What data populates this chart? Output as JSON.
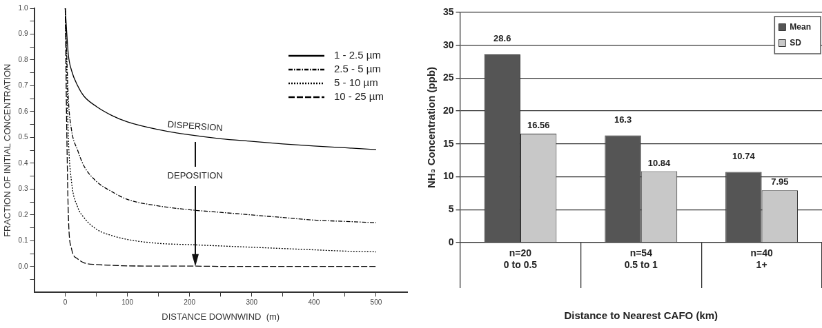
{
  "chart_data": [
    {
      "type": "line",
      "xlabel": "DISTANCE DOWNWIND  (m)",
      "ylabel": "FRACTION OF INITIAL CONCENTRATION",
      "x": [
        0,
        2,
        5,
        10,
        20,
        30,
        50,
        75,
        100,
        150,
        200,
        250,
        300,
        350,
        400,
        450,
        500
      ],
      "series": [
        {
          "name": "1 - 2.5 µm",
          "color": "#000000",
          "line_style": "solid",
          "values": [
            1.0,
            0.92,
            0.82,
            0.76,
            0.7,
            0.66,
            0.62,
            0.585,
            0.56,
            0.53,
            0.51,
            0.495,
            0.485,
            0.475,
            0.467,
            0.46,
            0.453
          ]
        },
        {
          "name": "2.5 - 5 µm",
          "color": "#000000",
          "line_style": "dashdot",
          "values": [
            1.0,
            0.85,
            0.65,
            0.53,
            0.45,
            0.39,
            0.33,
            0.29,
            0.26,
            0.235,
            0.22,
            0.21,
            0.2,
            0.19,
            0.18,
            0.175,
            0.17
          ]
        },
        {
          "name": "5 - 10 µm",
          "color": "#000000",
          "line_style": "dotted",
          "values": [
            1.0,
            0.8,
            0.5,
            0.33,
            0.23,
            0.19,
            0.145,
            0.12,
            0.105,
            0.09,
            0.085,
            0.08,
            0.075,
            0.07,
            0.065,
            0.06,
            0.057
          ]
        },
        {
          "name": "10 - 25 µm",
          "color": "#000000",
          "line_style": "dashed",
          "values": [
            1.0,
            0.6,
            0.2,
            0.07,
            0.03,
            0.015,
            0.008,
            0.005,
            0.003,
            0.002,
            0.002,
            0.001,
            0.001,
            0.001,
            0.001,
            0.001,
            0.001
          ]
        }
      ],
      "xlim": [
        -50,
        550
      ],
      "xticks": [
        0,
        {
          "value": 50,
          "label": null
        },
        100,
        {
          "value": 150,
          "label": null
        },
        200,
        {
          "value": 250,
          "label": null
        },
        300,
        {
          "value": 350,
          "label": null
        },
        400,
        {
          "value": 450,
          "label": null
        },
        500
      ],
      "ylim": [
        -0.1,
        1.0
      ],
      "yticks": [
        {
          "value": -0.05,
          "label": null
        },
        {
          "value": 0,
          "label": "0.0"
        },
        {
          "value": 0.05,
          "label": null
        },
        0.1,
        {
          "value": 0.15,
          "label": null
        },
        0.2,
        {
          "value": 0.25,
          "label": null
        },
        0.3,
        {
          "value": 0.35,
          "label": null
        },
        0.4,
        {
          "value": 0.45,
          "label": null
        },
        0.5,
        {
          "value": 0.55,
          "label": null
        },
        0.6,
        {
          "value": 0.65,
          "label": null
        },
        0.7,
        {
          "value": 0.75,
          "label": null
        },
        0.8,
        {
          "value": 0.85,
          "label": null
        },
        0.9,
        {
          "value": 0.95,
          "label": null
        },
        {
          "value": 1.0,
          "label": "1.0"
        }
      ],
      "annotations": [
        "DISPERSION",
        "DEPOSITION"
      ],
      "legend": "top right",
      "marker": "none",
      "grid": false
    },
    {
      "type": "bar",
      "xlabel": "Distance to Nearest CAFO (km)",
      "ylabel": "NH₃ Concentration (ppb)",
      "categories": [
        "n=20\n0 to 0.5",
        "n=54\n0.5 to 1",
        "n=40\n1+"
      ],
      "series": [
        {
          "name": "Mean",
          "color": "#555555",
          "values": [
            28.6,
            16.3,
            10.74
          ]
        },
        {
          "name": "SD",
          "color": "#c8c8c8",
          "values": [
            16.56,
            10.84,
            7.95
          ]
        }
      ],
      "ylim": [
        0,
        35
      ],
      "yticks": [
        0,
        5,
        10,
        15,
        20,
        25,
        30,
        35
      ],
      "data_labels": true,
      "legend": "top right",
      "grid": "y"
    }
  ]
}
